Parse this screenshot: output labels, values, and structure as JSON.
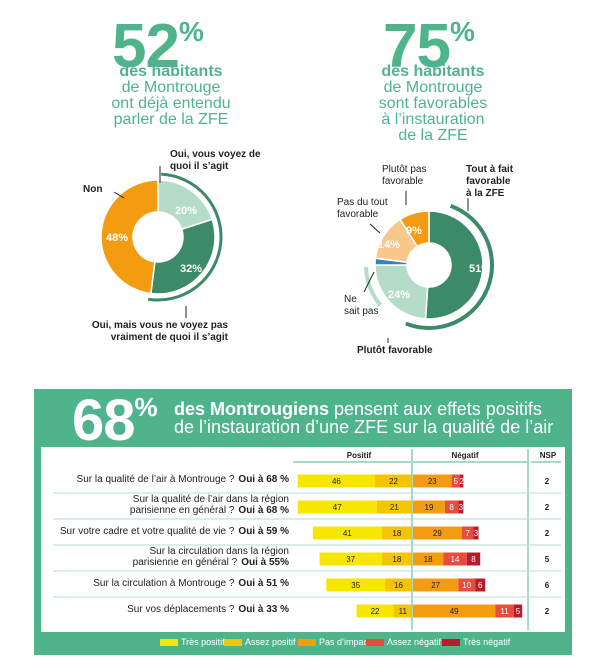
{
  "left_block": {
    "big_number": "52",
    "pct_sign": "%",
    "line1": "des habitants",
    "line2": "de Montrouge",
    "line3": "ont déjà entendu",
    "line4": "parler de la ZFE"
  },
  "right_block": {
    "big_number": "75",
    "pct_sign": "%",
    "line1": "des habitants",
    "line2": "de Montrouge",
    "line3": "sont favorables",
    "line4": "à l’instauration",
    "line5": "de la ZFE"
  },
  "bottom": {
    "big_number": "68",
    "pct_sign": "%",
    "headline_bold": "des Montrougiens",
    "headline_rest1": " pensent aux effets positifs",
    "headline_line2": "de l’instauration d’une ZFE sur la qualité de l’air"
  },
  "colors": {
    "brand_green": "#4fb48c",
    "dark_green": "#3c8a68",
    "light_green": "#b4dcc8",
    "orange": "#f39c12",
    "light_orange": "#f9c78a",
    "blue": "#2e86c1",
    "tres_positif": "#f7e600",
    "assez_positif": "#f5c400",
    "pas_impact": "#f39c12",
    "assez_negatif": "#e74c3c",
    "tres_negatif": "#b71c2c"
  },
  "chart_data": [
    {
      "type": "pie",
      "labels": [
        "Oui, vous voyez de quoi il s’agit",
        "Oui, mais vous ne voyez pas vraiment de quoi il s’agit",
        "Non"
      ],
      "label_lines": [
        [
          "Oui, vous voyez de",
          "quoi il s’agit"
        ],
        [
          "Oui, mais vous ne voyez pas",
          "vraiment de quoi il s’agit"
        ],
        [
          "Non"
        ]
      ],
      "values": [
        20,
        32,
        48
      ],
      "value_labels": [
        "20%",
        "32%",
        "48%"
      ],
      "colors": [
        "#b4dcc8",
        "#3c8a68",
        "#f39c12"
      ]
    },
    {
      "type": "pie",
      "labels": [
        "Tout à fait favorable à la ZFE",
        "Plutôt favorable",
        "Ne sait pas",
        "Pas du tout favorable",
        "Plutôt pas favorable"
      ],
      "label_lines": [
        [
          "Tout à fait",
          "favorable",
          "à la ZFE"
        ],
        [
          "Plutôt favorable"
        ],
        [
          "Ne",
          "sait pas"
        ],
        [
          "Pas du tout",
          "favorable"
        ],
        [
          "Plutôt pas",
          "favorable"
        ]
      ],
      "values": [
        51,
        24,
        2,
        14,
        9
      ],
      "value_labels": [
        "51%",
        "24%",
        "",
        "14%",
        "9%"
      ],
      "colors": [
        "#3c8a68",
        "#b4dcc8",
        "#2e86c1",
        "#f9c78a",
        "#f39c12"
      ]
    },
    {
      "type": "bar",
      "orientation": "horizontal-stacked-diverging",
      "column_headers": [
        "Positif",
        "Négatif",
        "NSP"
      ],
      "categories": [
        [
          "Sur la qualité de l’air à Montrouge ?"
        ],
        [
          "Sur la qualité de l’air dans la région",
          "parisienne en général ?"
        ],
        [
          "Sur votre cadre et votre qualité de vie ?"
        ],
        [
          "Sur la circulation dans la région",
          "parisienne en général ?"
        ],
        [
          "Sur la circulation à Montrouge ?"
        ],
        [
          "Sur vos déplacements ?"
        ]
      ],
      "oui_labels": [
        "Oui à 68 %",
        "Oui à 68 %",
        "Oui à 59 %",
        "Oui à 55%",
        "Oui à 51 %",
        "Oui à 33 %"
      ],
      "series": [
        {
          "name": "Très positif",
          "values": [
            46,
            47,
            41,
            37,
            35,
            22
          ]
        },
        {
          "name": "Assez positif",
          "values": [
            22,
            21,
            18,
            18,
            16,
            11
          ]
        },
        {
          "name": "Pas d’impact",
          "values": [
            23,
            19,
            29,
            18,
            27,
            49
          ]
        },
        {
          "name": "Assez négatif",
          "values": [
            5,
            8,
            7,
            14,
            10,
            11
          ]
        },
        {
          "name": "Très négatif",
          "values": [
            2,
            3,
            3,
            8,
            6,
            5
          ]
        }
      ],
      "nsp": [
        2,
        2,
        2,
        5,
        6,
        2
      ],
      "legend": [
        "Très positif",
        "Assez positif",
        "Pas d’impact",
        "Assez négatif",
        "Très négatif"
      ]
    }
  ]
}
